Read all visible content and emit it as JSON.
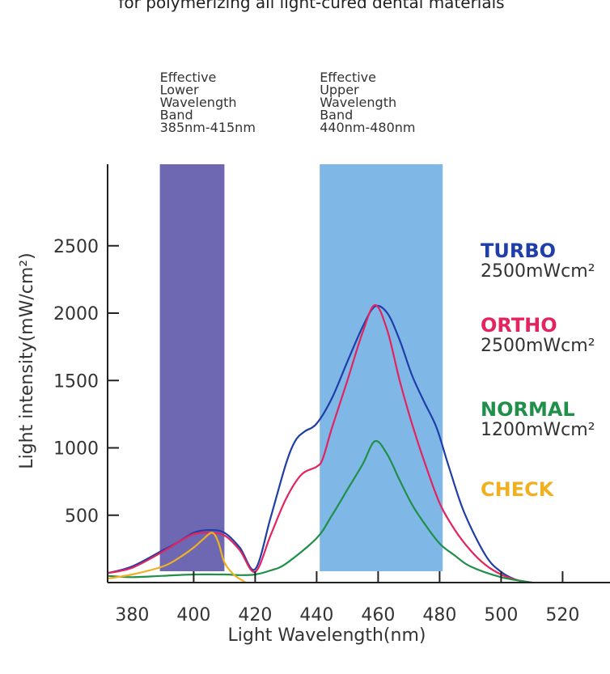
{
  "chart_data": {
    "type": "line",
    "subtitle": "for polymerizing all light-cured dental materials",
    "xlabel": "Light Wavelength(nm)",
    "ylabel": "Light intensity(mW/cm²)",
    "xlim": [
      372,
      540
    ],
    "ylim": [
      0,
      3100
    ],
    "xticks": [
      380,
      400,
      420,
      440,
      460,
      480,
      500,
      520
    ],
    "yticks": [
      500,
      1000,
      1500,
      2000,
      2500
    ],
    "bands": [
      {
        "label": [
          "Effective",
          "Lower",
          "Wavelength",
          "Band",
          "385nm-415nm"
        ],
        "x0": 389,
        "x1": 410,
        "color": "#6e67b2"
      },
      {
        "label": [
          "Effective",
          "Upper",
          "Wavelength",
          "Band",
          "440nm-480nm"
        ],
        "x0": 441,
        "x1": 481,
        "color": "#7fb7e6"
      }
    ],
    "series": [
      {
        "name": "TURBO",
        "value": "2500mWcm²",
        "color": "#1f3ea8",
        "x": [
          372,
          380,
          390,
          395,
          400,
          405,
          410,
          415,
          420,
          425,
          430,
          433,
          436,
          440,
          445,
          450,
          455,
          459,
          463,
          467,
          471,
          475,
          479,
          483,
          488,
          495,
          500,
          505,
          510
        ],
        "y": [
          70,
          120,
          240,
          300,
          370,
          390,
          370,
          260,
          100,
          480,
          880,
          1050,
          1120,
          1180,
          1370,
          1640,
          1900,
          2050,
          2000,
          1800,
          1540,
          1340,
          1150,
          860,
          520,
          200,
          80,
          20,
          0
        ]
      },
      {
        "name": "ORTHO",
        "value": "2500mWcm²",
        "color": "#e3245e",
        "x": [
          372,
          380,
          390,
          395,
          400,
          405,
          410,
          415,
          420,
          425,
          430,
          435,
          440,
          442,
          445,
          450,
          455,
          459,
          463,
          467,
          471,
          475,
          480,
          485,
          490,
          495,
          500,
          505,
          510
        ],
        "y": [
          70,
          110,
          230,
          300,
          360,
          370,
          350,
          240,
          80,
          350,
          620,
          800,
          860,
          920,
          1150,
          1500,
          1860,
          2060,
          1870,
          1500,
          1180,
          900,
          590,
          390,
          240,
          130,
          60,
          20,
          0
        ]
      },
      {
        "name": "NORMAL",
        "value": "1200mWcm²",
        "color": "#1f8f4a",
        "x": [
          372,
          380,
          390,
          400,
          410,
          415,
          420,
          425,
          430,
          440,
          445,
          450,
          455,
          459,
          463,
          467,
          471,
          475,
          480,
          485,
          490,
          500,
          510
        ],
        "y": [
          50,
          40,
          50,
          60,
          60,
          55,
          60,
          90,
          140,
          330,
          500,
          690,
          880,
          1050,
          950,
          760,
          580,
          440,
          290,
          200,
          120,
          40,
          0
        ]
      },
      {
        "name": "CHECK",
        "value": "",
        "color": "#f0b020",
        "x": [
          372,
          380,
          390,
          395,
          400,
          403,
          406,
          408,
          410,
          413,
          417
        ],
        "y": [
          30,
          60,
          120,
          180,
          260,
          320,
          370,
          300,
          150,
          60,
          0
        ]
      }
    ]
  }
}
